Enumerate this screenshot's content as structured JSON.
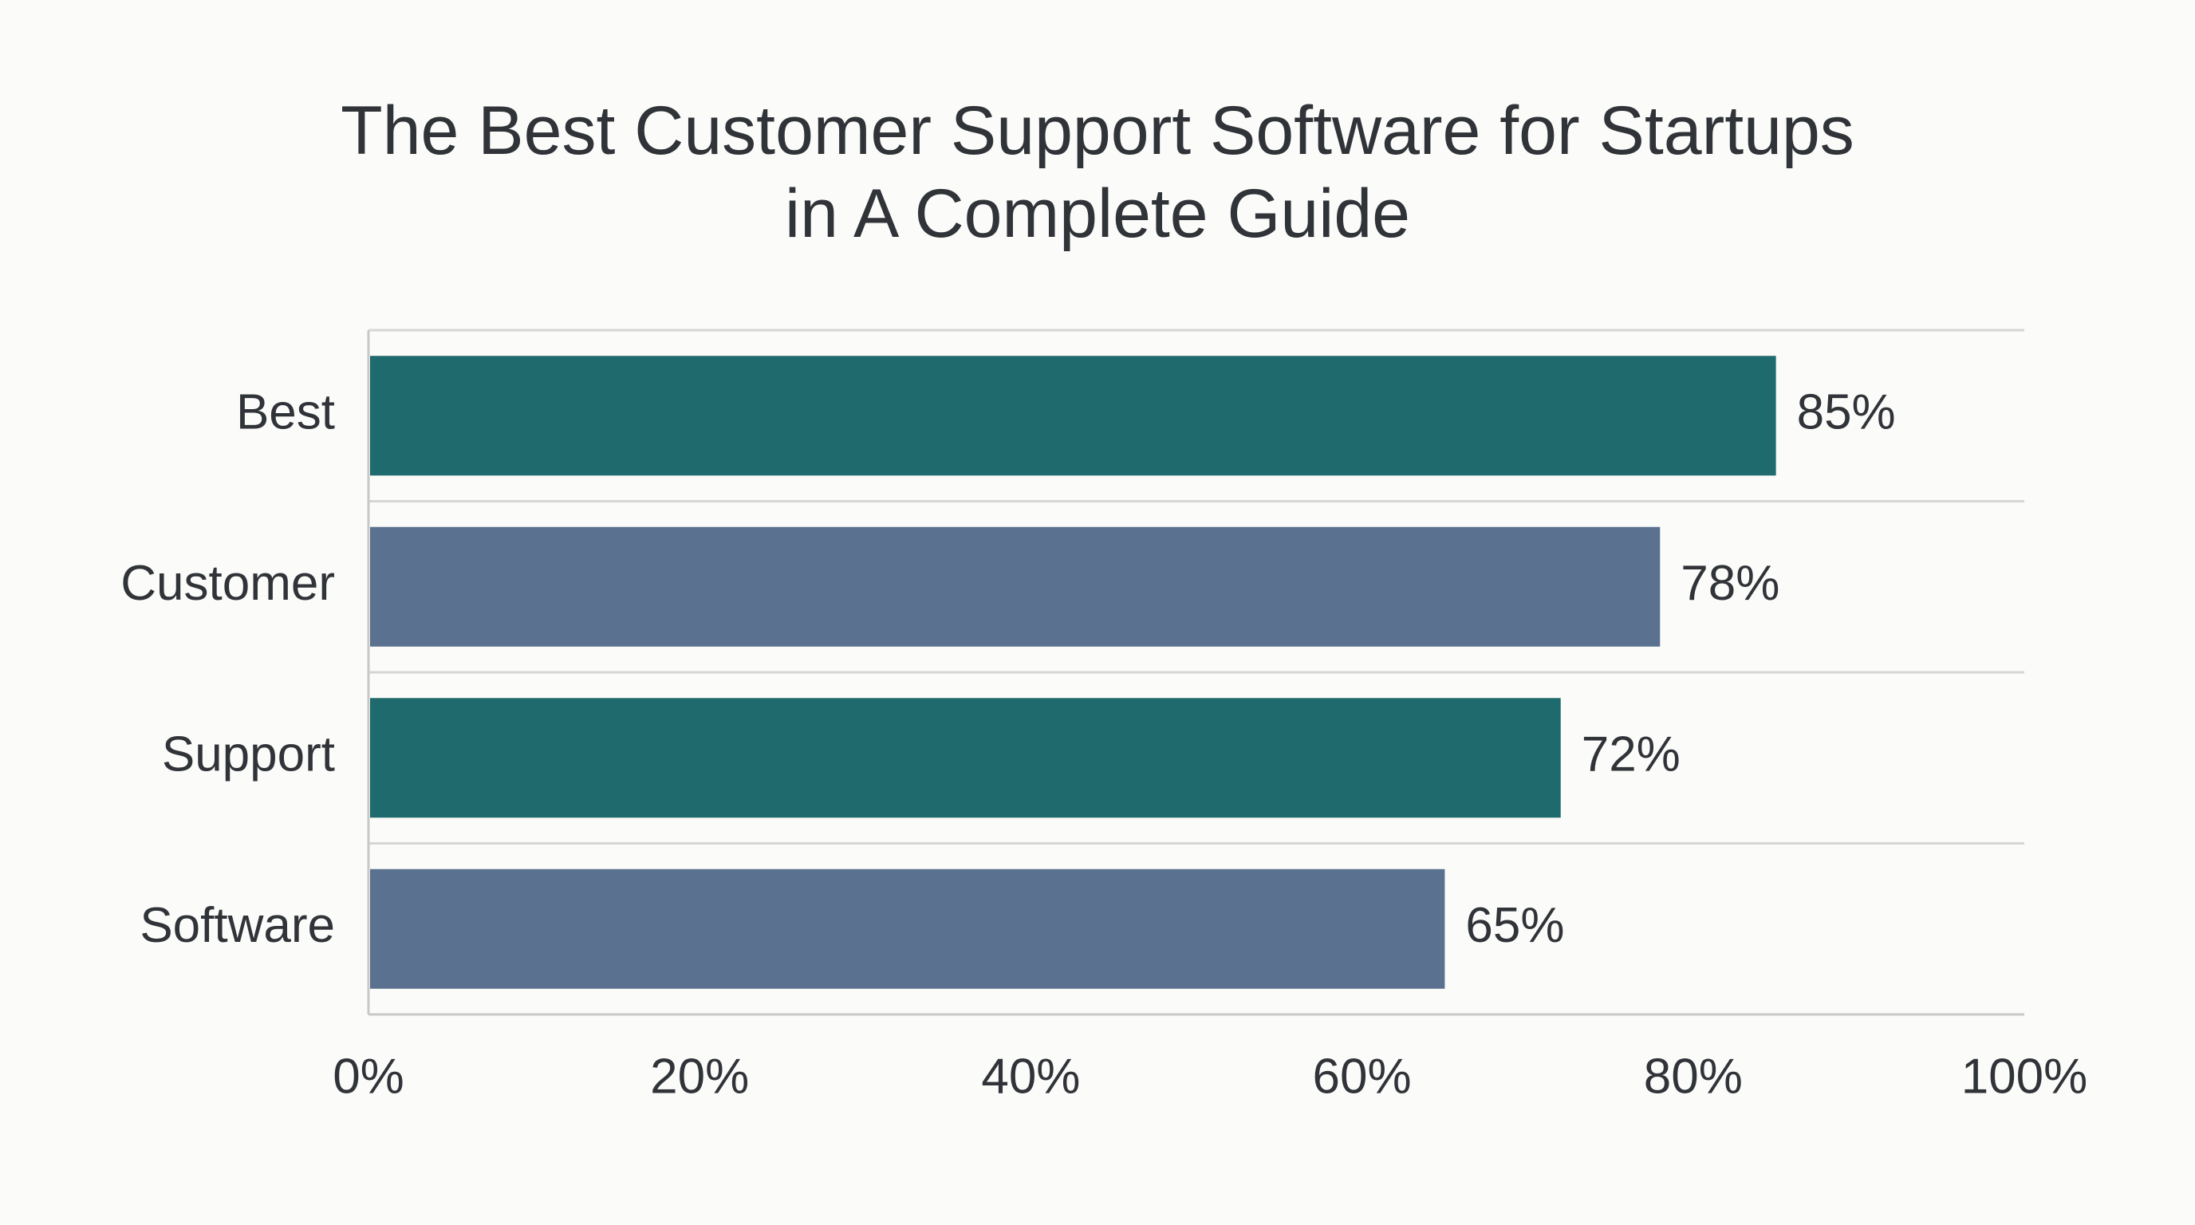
{
  "chart_data": {
    "type": "bar",
    "orientation": "horizontal",
    "title_lines": [
      "The Best Customer Support Software for Startups",
      "in A Complete Guide"
    ],
    "categories": [
      "Best",
      "Customer",
      "Support",
      "Software"
    ],
    "values": [
      85,
      78,
      72,
      65
    ],
    "value_labels": [
      "85%",
      "78%",
      "72%",
      "65%"
    ],
    "xlim": [
      0,
      100
    ],
    "xticks": [
      0,
      20,
      40,
      60,
      80,
      100
    ],
    "xtick_labels": [
      "0%",
      "20%",
      "40%",
      "60%",
      "80%",
      "100%"
    ],
    "grid": "horizontal separators between categories",
    "legend": "none",
    "bar_colors": [
      "#1f6a6c",
      "#5a7190",
      "#1f6a6c",
      "#5a7190"
    ],
    "colors": {
      "background": "#fbfbf9",
      "text": "#303338",
      "axis": "#c8c8c8",
      "grid": "#d6d6d6"
    }
  }
}
